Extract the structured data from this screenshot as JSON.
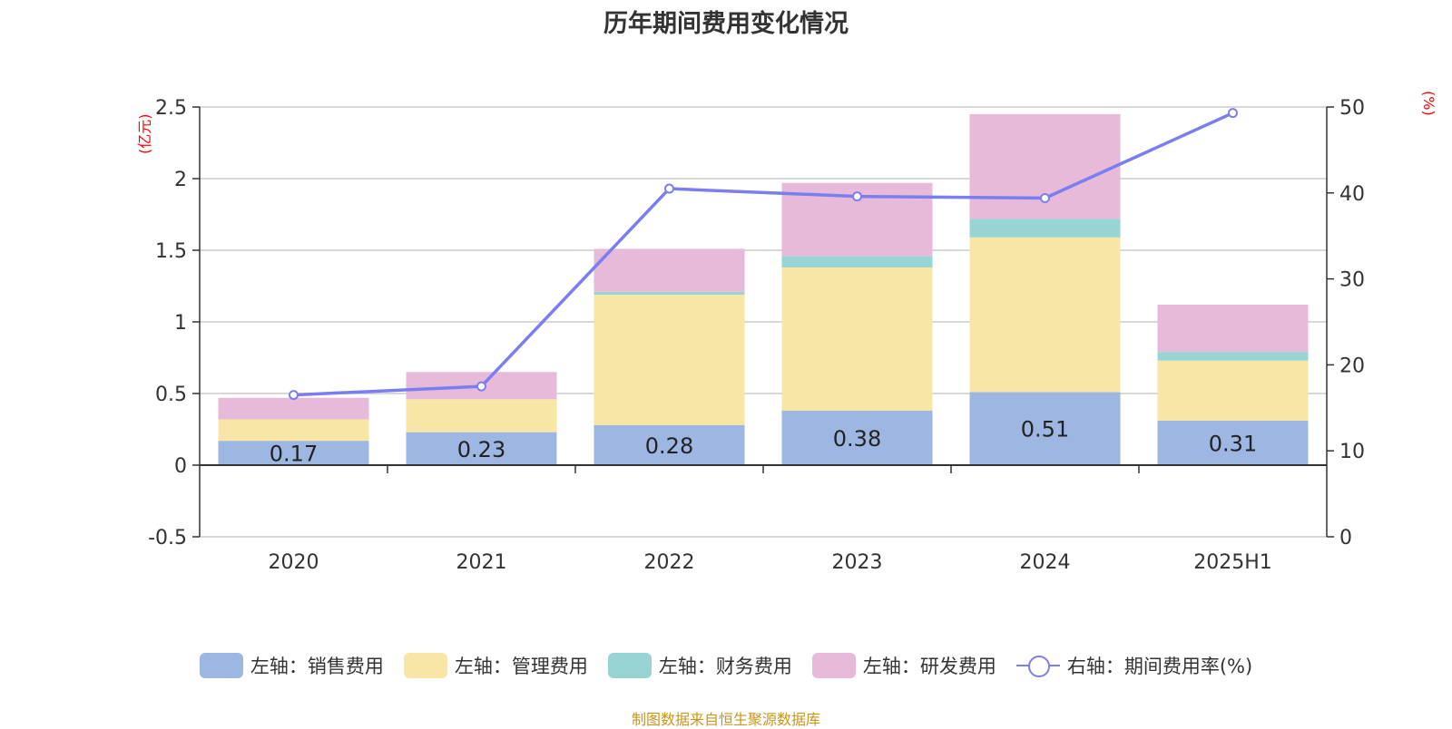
{
  "chart_data": {
    "type": "bar",
    "title": "历年期间费用变化情况",
    "left_unit": "(亿元)",
    "right_unit": "(%)",
    "categories": [
      "2020",
      "2021",
      "2022",
      "2023",
      "2024",
      "2025H1"
    ],
    "stacked": true,
    "left_axis": {
      "ylim": [
        -0.5,
        2.5
      ],
      "ticks": [
        "-0.5",
        "0",
        "0.5",
        "1",
        "1.5",
        "2",
        "2.5"
      ]
    },
    "right_axis": {
      "ylim": [
        0,
        50
      ],
      "ticks": [
        "0",
        "10",
        "20",
        "30",
        "40",
        "50"
      ]
    },
    "series": [
      {
        "name": "左轴：销售费用",
        "type": "bar",
        "axis": "left",
        "color": "#9db7e2",
        "values": [
          0.17,
          0.23,
          0.28,
          0.38,
          0.51,
          0.31
        ],
        "data_labels": [
          "0.17",
          "0.23",
          "0.28",
          "0.38",
          "0.51",
          "0.31"
        ]
      },
      {
        "name": "左轴：管理费用",
        "type": "bar",
        "axis": "left",
        "color": "#f8e6a6",
        "values": [
          0.15,
          0.23,
          0.91,
          1.0,
          1.08,
          0.42
        ]
      },
      {
        "name": "左轴：财务费用",
        "type": "bar",
        "axis": "left",
        "color": "#98d4d4",
        "values": [
          0.0,
          0.0,
          0.02,
          0.08,
          0.13,
          0.06
        ]
      },
      {
        "name": "左轴：研发费用",
        "type": "bar",
        "axis": "left",
        "color": "#e7bada",
        "values": [
          0.15,
          0.19,
          0.3,
          0.51,
          0.73,
          0.33
        ]
      },
      {
        "name": "右轴：期间费用率(%)",
        "type": "line",
        "axis": "right",
        "color": "#7b7ef0",
        "values": [
          16.5,
          17.5,
          40.5,
          39.6,
          39.4,
          49.3
        ]
      }
    ],
    "grid": true,
    "legend_position": "bottom"
  },
  "source_note": "制图数据来自恒生聚源数据库"
}
